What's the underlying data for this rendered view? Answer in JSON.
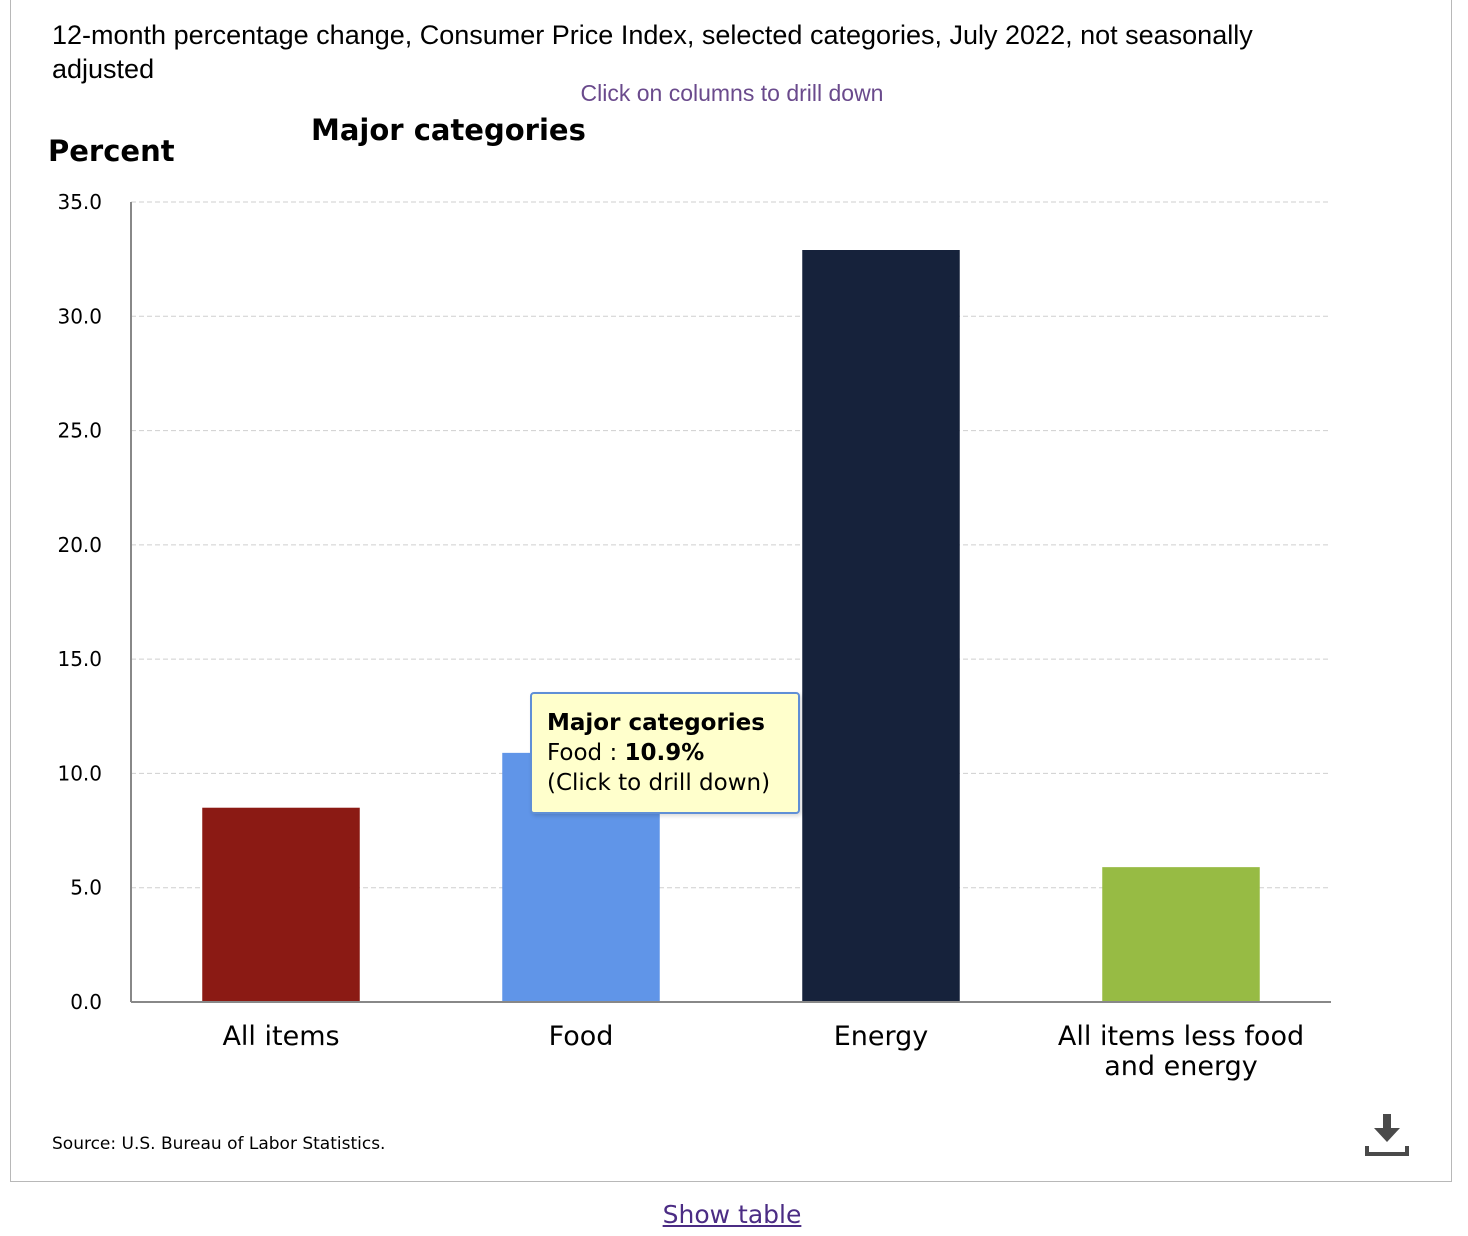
{
  "title": "12-month percentage change, Consumer Price Index, selected categories, July 2022, not seasonally adjusted",
  "drill_hint": "Click on columns to drill down",
  "source": "Source: U.S. Bureau of Labor Statistics.",
  "show_table": "Show table",
  "download_icon": "download-icon",
  "tooltip": {
    "header": "Major categories",
    "category": "Food",
    "separator": " : ",
    "value_text": "10.9%",
    "hint": "(Click to drill down)"
  },
  "chart_data": {
    "type": "bar",
    "title": "Major categories",
    "ylabel": "Percent",
    "xlabel": "",
    "ylim": [
      0,
      35
    ],
    "yticks": [
      "0.0",
      "5.0",
      "10.0",
      "15.0",
      "20.0",
      "25.0",
      "30.0",
      "35.0"
    ],
    "grid": true,
    "categories": [
      {
        "label_lines": [
          "All items"
        ],
        "value": 8.5,
        "color": "#8b1a14"
      },
      {
        "label_lines": [
          "Food"
        ],
        "value": 10.9,
        "color": "#6095e8"
      },
      {
        "label_lines": [
          "Energy"
        ],
        "value": 32.9,
        "color": "#16223b"
      },
      {
        "label_lines": [
          "All items less food",
          "and energy"
        ],
        "value": 5.9,
        "color": "#97bb44"
      }
    ]
  }
}
